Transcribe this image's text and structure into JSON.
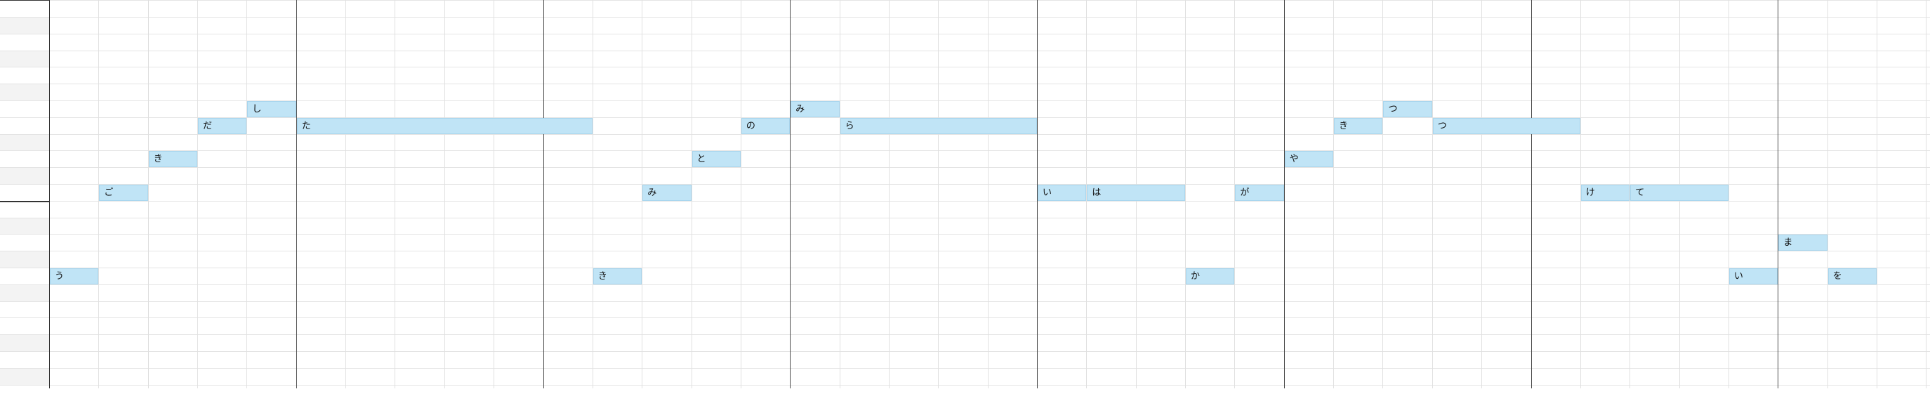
{
  "colors": {
    "note_fill": "#c0e4f6",
    "note_border": "#a9d6ee",
    "grid_line": "#e4e4e4",
    "bar_line": "#4a4a4a",
    "background": "#ffffff"
  },
  "piano_roll": {
    "notes": [
      {
        "lyric": "う",
        "pitch_row": 16,
        "start": 0,
        "length": 1
      },
      {
        "lyric": "ご",
        "pitch_row": 11,
        "start": 1,
        "length": 1
      },
      {
        "lyric": "き",
        "pitch_row": 9,
        "start": 2,
        "length": 1
      },
      {
        "lyric": "だ",
        "pitch_row": 7,
        "start": 3,
        "length": 1
      },
      {
        "lyric": "し",
        "pitch_row": 6,
        "start": 4,
        "length": 1
      },
      {
        "lyric": "た",
        "pitch_row": 7,
        "start": 5,
        "length": 6
      },
      {
        "lyric": "き",
        "pitch_row": 16,
        "start": 11,
        "length": 1
      },
      {
        "lyric": "み",
        "pitch_row": 11,
        "start": 12,
        "length": 1
      },
      {
        "lyric": "と",
        "pitch_row": 9,
        "start": 13,
        "length": 1
      },
      {
        "lyric": "の",
        "pitch_row": 7,
        "start": 14,
        "length": 1
      },
      {
        "lyric": "み",
        "pitch_row": 6,
        "start": 15,
        "length": 1
      },
      {
        "lyric": "ら",
        "pitch_row": 7,
        "start": 16,
        "length": 4
      },
      {
        "lyric": "い",
        "pitch_row": 11,
        "start": 20,
        "length": 1
      },
      {
        "lyric": "は",
        "pitch_row": 11,
        "start": 21,
        "length": 2
      },
      {
        "lyric": "か",
        "pitch_row": 16,
        "start": 23,
        "length": 1
      },
      {
        "lyric": "が",
        "pitch_row": 11,
        "start": 24,
        "length": 1
      },
      {
        "lyric": "や",
        "pitch_row": 9,
        "start": 25,
        "length": 1
      },
      {
        "lyric": "き",
        "pitch_row": 7,
        "start": 26,
        "length": 1
      },
      {
        "lyric": "つ",
        "pitch_row": 6,
        "start": 27,
        "length": 1
      },
      {
        "lyric": "つ",
        "pitch_row": 7,
        "start": 28,
        "length": 3
      },
      {
        "lyric": "け",
        "pitch_row": 11,
        "start": 31,
        "length": 1
      },
      {
        "lyric": "て",
        "pitch_row": 11,
        "start": 32,
        "length": 2
      },
      {
        "lyric": "い",
        "pitch_row": 16,
        "start": 34,
        "length": 1
      },
      {
        "lyric": "ま",
        "pitch_row": 14,
        "start": 35,
        "length": 1
      },
      {
        "lyric": "を",
        "pitch_row": 16,
        "start": 36,
        "length": 1
      }
    ]
  }
}
